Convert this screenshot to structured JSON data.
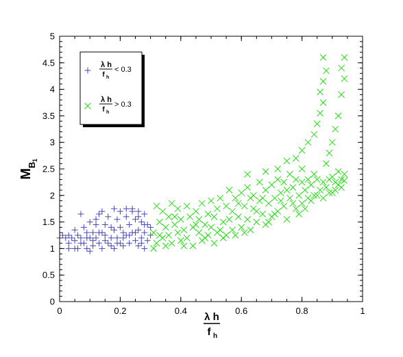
{
  "chart_data": {
    "type": "scatter",
    "title": "",
    "xlabel": {
      "numerator": "λ h",
      "denominator_base": "f",
      "denominator_sub": "h"
    },
    "ylabel": {
      "base": "M",
      "sub": "B",
      "subsub": "1"
    },
    "xlim": [
      0,
      1
    ],
    "ylim": [
      0,
      5
    ],
    "x_ticks": [
      0,
      0.2,
      0.4,
      0.6,
      0.8,
      1
    ],
    "x_tick_labels": [
      "0",
      "0.2",
      "0.4",
      "0.6",
      "0.8",
      "1"
    ],
    "y_ticks": [
      0,
      0.5,
      1,
      1.5,
      2,
      2.5,
      3,
      3.5,
      4,
      4.5,
      5
    ],
    "y_tick_labels": [
      "0",
      "0.5",
      "1",
      "1.5",
      "2",
      "2.5",
      "3",
      "3.5",
      "4",
      "4.5",
      "5"
    ],
    "grid": false,
    "legend_position": "top-left",
    "series": [
      {
        "legend_numerator": "λ h",
        "legend_denominator_base": "f",
        "legend_denominator_sub": "h",
        "legend_relation": "< 0.3",
        "marker": "plus",
        "color": "#4646b4",
        "points": [
          [
            0.0,
            1.2
          ],
          [
            0.01,
            1.25
          ],
          [
            0.02,
            1.2
          ],
          [
            0.03,
            1.1
          ],
          [
            0.03,
            1.0
          ],
          [
            0.04,
            1.2
          ],
          [
            0.05,
            1.35
          ],
          [
            0.05,
            1.0
          ],
          [
            0.06,
            1.25
          ],
          [
            0.06,
            1.0
          ],
          [
            0.07,
            1.2
          ],
          [
            0.07,
            1.65
          ],
          [
            0.08,
            1.4
          ],
          [
            0.08,
            1.1
          ],
          [
            0.09,
            1.3
          ],
          [
            0.09,
            1.0
          ],
          [
            0.1,
            1.5
          ],
          [
            0.1,
            1.2
          ],
          [
            0.1,
            0.95
          ],
          [
            0.11,
            1.3
          ],
          [
            0.11,
            1.05
          ],
          [
            0.12,
            1.45
          ],
          [
            0.12,
            1.2
          ],
          [
            0.13,
            1.65
          ],
          [
            0.13,
            1.1
          ],
          [
            0.14,
            1.3
          ],
          [
            0.14,
            1.0
          ],
          [
            0.15,
            1.45
          ],
          [
            0.15,
            1.25
          ],
          [
            0.16,
            1.6
          ],
          [
            0.16,
            1.1
          ],
          [
            0.17,
            1.4
          ],
          [
            0.17,
            1.2
          ],
          [
            0.18,
            1.75
          ],
          [
            0.18,
            1.35
          ],
          [
            0.18,
            1.0
          ],
          [
            0.19,
            1.55
          ],
          [
            0.19,
            1.2
          ],
          [
            0.2,
            1.7
          ],
          [
            0.2,
            1.4
          ],
          [
            0.2,
            1.1
          ],
          [
            0.21,
            1.3
          ],
          [
            0.21,
            1.05
          ],
          [
            0.22,
            1.6
          ],
          [
            0.22,
            1.25
          ],
          [
            0.23,
            1.45
          ],
          [
            0.23,
            1.1
          ],
          [
            0.24,
            1.75
          ],
          [
            0.24,
            1.3
          ],
          [
            0.25,
            1.55
          ],
          [
            0.25,
            1.15
          ],
          [
            0.26,
            1.7
          ],
          [
            0.26,
            1.35
          ],
          [
            0.26,
            1.05
          ],
          [
            0.27,
            1.5
          ],
          [
            0.27,
            1.2
          ],
          [
            0.28,
            1.65
          ],
          [
            0.28,
            1.3
          ],
          [
            0.28,
            1.0
          ],
          [
            0.29,
            1.45
          ],
          [
            0.29,
            1.15
          ],
          [
            0.3,
            1.4
          ],
          [
            0.3,
            1.25
          ],
          [
            0.21,
            1.2
          ],
          [
            0.23,
            1.25
          ],
          [
            0.25,
            1.3
          ],
          [
            0.27,
            1.1
          ],
          [
            0.19,
            1.1
          ],
          [
            0.17,
            1.05
          ],
          [
            0.15,
            1.15
          ],
          [
            0.13,
            1.3
          ],
          [
            0.11,
            1.15
          ],
          [
            0.09,
            1.2
          ],
          [
            0.07,
            1.1
          ],
          [
            0.05,
            1.15
          ],
          [
            0.03,
            1.25
          ],
          [
            0.22,
            1.75
          ],
          [
            0.24,
            1.7
          ],
          [
            0.26,
            1.6
          ],
          [
            0.28,
            1.45
          ],
          [
            0.14,
            1.7
          ],
          [
            0.12,
            1.55
          ]
        ]
      },
      {
        "legend_numerator": "λ h",
        "legend_denominator_base": "f",
        "legend_denominator_sub": "h",
        "legend_relation": "> 0.3",
        "marker": "cross",
        "color": "#22dd11",
        "points": [
          [
            0.31,
            1.0
          ],
          [
            0.31,
            1.3
          ],
          [
            0.32,
            1.8
          ],
          [
            0.32,
            1.1
          ],
          [
            0.33,
            1.5
          ],
          [
            0.34,
            1.2
          ],
          [
            0.34,
            1.7
          ],
          [
            0.35,
            1.4
          ],
          [
            0.35,
            1.05
          ],
          [
            0.36,
            1.6
          ],
          [
            0.36,
            1.25
          ],
          [
            0.37,
            1.85
          ],
          [
            0.37,
            1.1
          ],
          [
            0.38,
            1.45
          ],
          [
            0.39,
            1.3
          ],
          [
            0.39,
            1.75
          ],
          [
            0.4,
            1.15
          ],
          [
            0.4,
            1.55
          ],
          [
            0.41,
            1.35
          ],
          [
            0.42,
            1.8
          ],
          [
            0.42,
            1.2
          ],
          [
            0.43,
            1.6
          ],
          [
            0.44,
            1.4
          ],
          [
            0.44,
            1.05
          ],
          [
            0.45,
            1.7
          ],
          [
            0.46,
            1.3
          ],
          [
            0.46,
            1.55
          ],
          [
            0.47,
            1.85
          ],
          [
            0.47,
            1.15
          ],
          [
            0.48,
            1.45
          ],
          [
            0.49,
            1.65
          ],
          [
            0.49,
            1.25
          ],
          [
            0.5,
            1.9
          ],
          [
            0.5,
            1.4
          ],
          [
            0.51,
            1.6
          ],
          [
            0.51,
            1.1
          ],
          [
            0.52,
            1.75
          ],
          [
            0.53,
            1.35
          ],
          [
            0.53,
            1.95
          ],
          [
            0.54,
            1.5
          ],
          [
            0.54,
            1.2
          ],
          [
            0.55,
            1.8
          ],
          [
            0.56,
            1.55
          ],
          [
            0.56,
            2.1
          ],
          [
            0.57,
            1.35
          ],
          [
            0.57,
            1.7
          ],
          [
            0.58,
            1.95
          ],
          [
            0.58,
            1.25
          ],
          [
            0.59,
            1.6
          ],
          [
            0.6,
            2.05
          ],
          [
            0.6,
            1.4
          ],
          [
            0.61,
            1.8
          ],
          [
            0.62,
            1.55
          ],
          [
            0.62,
            2.15
          ],
          [
            0.63,
            1.35
          ],
          [
            0.64,
            1.75
          ],
          [
            0.64,
            2.0
          ],
          [
            0.65,
            1.5
          ],
          [
            0.66,
            1.9
          ],
          [
            0.66,
            2.25
          ],
          [
            0.67,
            1.65
          ],
          [
            0.68,
            2.1
          ],
          [
            0.68,
            1.45
          ],
          [
            0.69,
            1.85
          ],
          [
            0.7,
            2.2
          ],
          [
            0.7,
            1.6
          ],
          [
            0.71,
            1.95
          ],
          [
            0.72,
            2.3
          ],
          [
            0.72,
            1.7
          ],
          [
            0.73,
            2.05
          ],
          [
            0.74,
            1.8
          ],
          [
            0.74,
            2.25
          ],
          [
            0.75,
            1.55
          ],
          [
            0.76,
            1.95
          ],
          [
            0.76,
            2.4
          ],
          [
            0.77,
            2.15
          ],
          [
            0.78,
            1.75
          ],
          [
            0.78,
            2.3
          ],
          [
            0.79,
            2.0
          ],
          [
            0.8,
            2.25
          ],
          [
            0.8,
            1.85
          ],
          [
            0.81,
            2.1
          ],
          [
            0.82,
            2.3
          ],
          [
            0.82,
            1.95
          ],
          [
            0.83,
            2.2
          ],
          [
            0.84,
            2.0
          ],
          [
            0.85,
            2.3
          ],
          [
            0.86,
            2.1
          ],
          [
            0.87,
            2.25
          ],
          [
            0.88,
            2.15
          ],
          [
            0.89,
            2.3
          ],
          [
            0.9,
            2.05
          ],
          [
            0.91,
            2.25
          ],
          [
            0.92,
            2.2
          ],
          [
            0.93,
            2.3
          ],
          [
            0.94,
            2.28
          ],
          [
            0.33,
            1.25
          ],
          [
            0.38,
            1.6
          ],
          [
            0.41,
            1.05
          ],
          [
            0.45,
            1.45
          ],
          [
            0.48,
            1.2
          ],
          [
            0.52,
            1.3
          ],
          [
            0.55,
            1.25
          ],
          [
            0.59,
            1.85
          ],
          [
            0.61,
            1.3
          ],
          [
            0.63,
            1.95
          ],
          [
            0.65,
            1.7
          ],
          [
            0.67,
            1.95
          ],
          [
            0.69,
            1.5
          ],
          [
            0.71,
            1.65
          ],
          [
            0.73,
            1.9
          ],
          [
            0.75,
            2.1
          ],
          [
            0.77,
            1.85
          ],
          [
            0.79,
            1.65
          ],
          [
            0.81,
            1.75
          ],
          [
            0.83,
            1.9
          ],
          [
            0.85,
            2.0
          ],
          [
            0.87,
            1.95
          ],
          [
            0.89,
            2.05
          ],
          [
            0.91,
            2.1
          ],
          [
            0.93,
            2.15
          ],
          [
            0.62,
            2.4
          ],
          [
            0.68,
            2.45
          ],
          [
            0.72,
            2.5
          ],
          [
            0.75,
            2.65
          ],
          [
            0.78,
            2.7
          ],
          [
            0.8,
            2.85
          ],
          [
            0.82,
            3.0
          ],
          [
            0.84,
            3.15
          ],
          [
            0.85,
            3.35
          ],
          [
            0.86,
            3.55
          ],
          [
            0.87,
            3.75
          ],
          [
            0.86,
            3.95
          ],
          [
            0.87,
            4.15
          ],
          [
            0.87,
            4.6
          ],
          [
            0.88,
            4.35
          ],
          [
            0.88,
            2.6
          ],
          [
            0.89,
            2.8
          ],
          [
            0.9,
            3.0
          ],
          [
            0.91,
            3.25
          ],
          [
            0.92,
            3.5
          ],
          [
            0.93,
            3.9
          ],
          [
            0.94,
            4.2
          ],
          [
            0.94,
            4.6
          ],
          [
            0.93,
            4.4
          ],
          [
            0.9,
            2.35
          ],
          [
            0.92,
            2.45
          ],
          [
            0.94,
            2.4
          ],
          [
            0.84,
            2.4
          ],
          [
            0.8,
            2.5
          ]
        ]
      }
    ]
  }
}
